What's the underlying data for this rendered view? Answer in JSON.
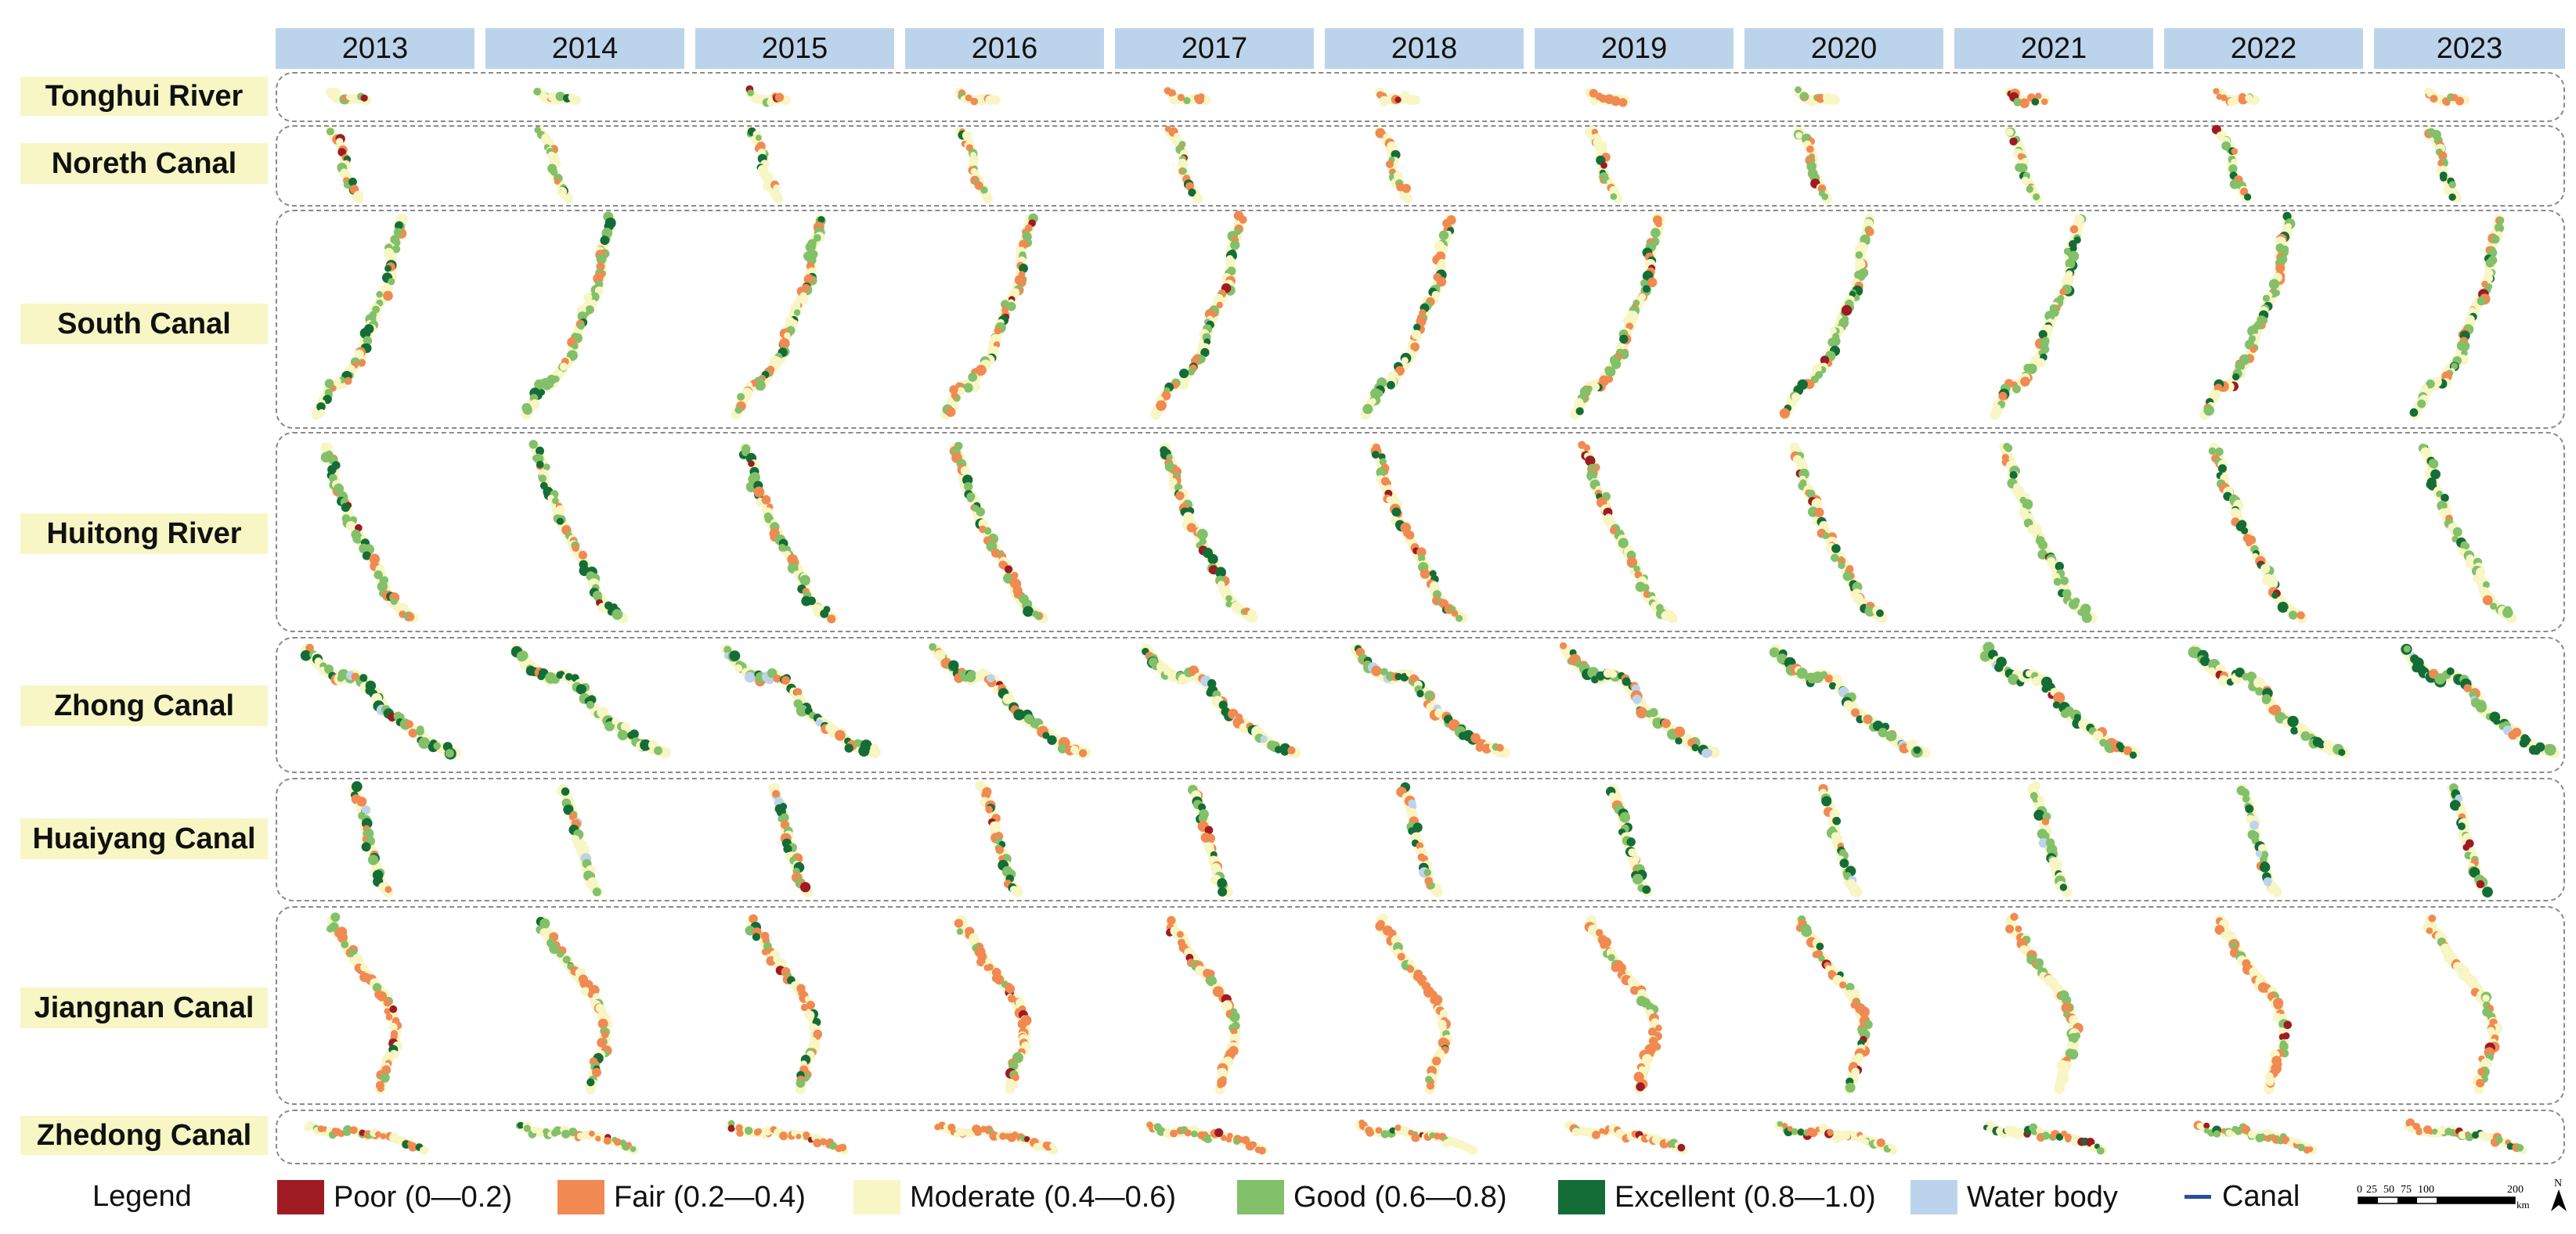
{
  "years": [
    "2013",
    "2014",
    "2015",
    "2016",
    "2017",
    "2018",
    "2019",
    "2020",
    "2021",
    "2022",
    "2023"
  ],
  "canals": [
    {
      "name": "Tonghui River"
    },
    {
      "name": "Noreth Canal"
    },
    {
      "name": "South Canal"
    },
    {
      "name": "Huitong River"
    },
    {
      "name": "Zhong Canal"
    },
    {
      "name": "Huaiyang Canal"
    },
    {
      "name": "Jiangnan Canal"
    },
    {
      "name": "Zhedong Canal"
    }
  ],
  "legend": {
    "title": "Legend",
    "items": [
      {
        "label": "Poor (0—0.2)",
        "color": "#9e1b23"
      },
      {
        "label": "Fair (0.2—0.4)",
        "color": "#f08a52"
      },
      {
        "label": "Moderate (0.4—0.6)",
        "color": "#f7f6c4"
      },
      {
        "label": "Good (0.6—0.8)",
        "color": "#82c06a"
      },
      {
        "label": "Excellent (0.8—1.0)",
        "color": "#146d36"
      },
      {
        "label": "Water body",
        "color": "#bcd4eb"
      }
    ],
    "canal_line": {
      "label": "Canal",
      "color": "#2b4fa0"
    }
  },
  "scale_bar": {
    "ticks": [
      "0",
      "25",
      "50",
      "75",
      "100",
      "200"
    ],
    "unit": "km",
    "north": "N"
  }
}
